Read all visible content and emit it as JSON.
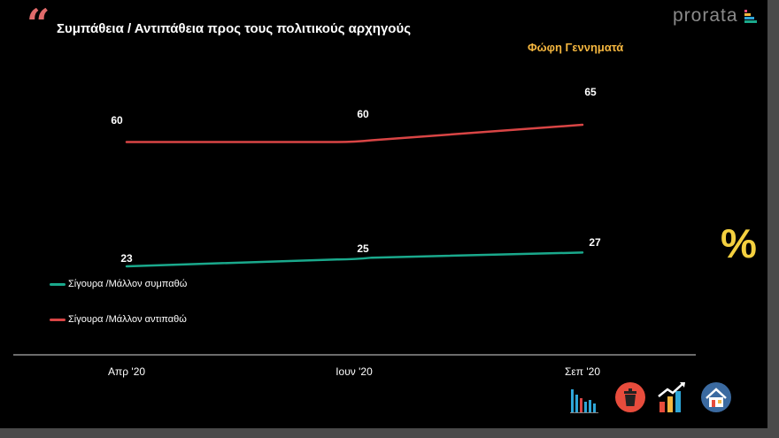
{
  "header": {
    "quote_icon": "quote-icon",
    "title": "Συμπάθεια / Αντιπάθεια προς τους πολιτικούς αρχηγούς",
    "subtitle": "Φώφη Γεννηματά",
    "brand": "prorata"
  },
  "colors": {
    "accent": "#e06a6a",
    "highlight": "#f4b63f",
    "positive": "#1aa98c",
    "negative": "#d94545",
    "brand_bars": [
      "#e84e7b",
      "#f4b63f",
      "#2ea6d8",
      "#1aa98c"
    ]
  },
  "chart_data": {
    "type": "line",
    "title": "Συμπάθεια / Αντιπάθεια προς τους πολιτικούς αρχηγούς",
    "subtitle": "Φώφη Γεννηματά",
    "categories": [
      "Απρ '20",
      "Ιουν '20",
      "Σεπ '20"
    ],
    "series": [
      {
        "name": "Σίγουρα /Μάλλον συμπαθώ",
        "values": [
          23,
          25,
          27
        ],
        "color": "#1aa98c"
      },
      {
        "name": "Σίγουρα /Μάλλον αντιπαθώ",
        "values": [
          60,
          60,
          65
        ],
        "color": "#d94545"
      }
    ],
    "xlabel": "",
    "ylabel": "",
    "ylim": [
      0,
      100
    ],
    "grid": false,
    "legend": "left"
  },
  "footer": {
    "percent_symbol": "%",
    "icons": [
      "bar-chart-icon",
      "trash-bin-icon",
      "growth-chart-icon",
      "house-icon"
    ]
  }
}
